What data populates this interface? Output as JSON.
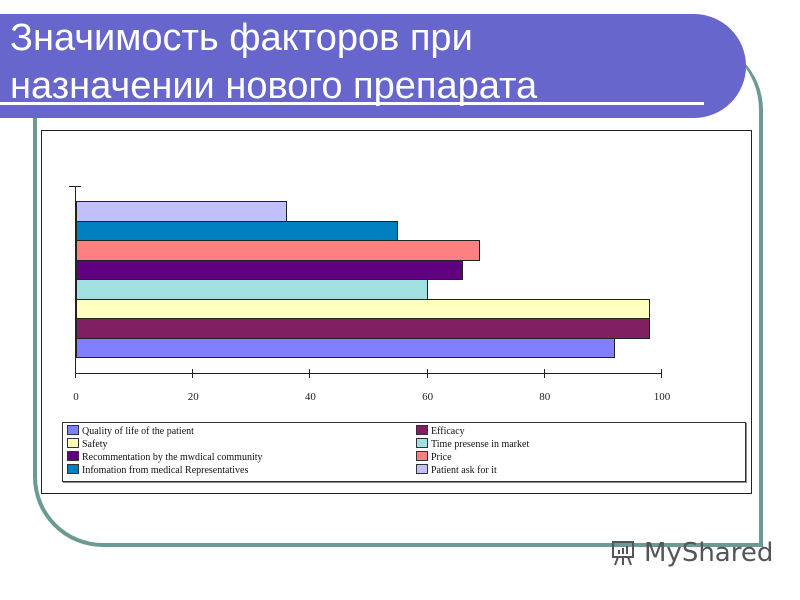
{
  "slide": {
    "title_line1": "Значимость факторов при",
    "title_line2": "назначении нового препарата",
    "watermark": "MyShared",
    "colors": {
      "banner": "#6666cc",
      "frame": "#6a9a93"
    }
  },
  "chart_data": {
    "type": "bar",
    "orientation": "horizontal",
    "title": "Значимость факторов при назначении нового препарата",
    "xlabel": "",
    "ylabel": "",
    "xlim": [
      0,
      100
    ],
    "x_ticks": [
      "0",
      "20",
      "40",
      "60",
      "80",
      "100"
    ],
    "grid": false,
    "legend_position": "bottom",
    "categories": [
      "Quality of life of the patient",
      "Efficacy",
      "Safety",
      "Time presense in market",
      "Recommentation by the mwdical community",
      "Price",
      "Infomation from medical Representatives",
      "Patient ask for it"
    ],
    "values": [
      92,
      98,
      98,
      60,
      66,
      69,
      55,
      36
    ],
    "colors": [
      "#8080ff",
      "#802060",
      "#ffffc0",
      "#a0e0e0",
      "#600080",
      "#ff8080",
      "#0080c0",
      "#c0c0ff"
    ]
  },
  "legend": {
    "items": [
      {
        "label": "Quality of life of the patient",
        "color": "#8080ff"
      },
      {
        "label": "Efficacy",
        "color": "#802060"
      },
      {
        "label": "Safety",
        "color": "#ffffc0"
      },
      {
        "label": "Time presense in market",
        "color": "#a0e0e0"
      },
      {
        "label": "Recommentation by the mwdical community",
        "color": "#600080"
      },
      {
        "label": "Price",
        "color": "#ff8080"
      },
      {
        "label": "Infomation from medical Representatives",
        "color": "#0080c0"
      },
      {
        "label": "Patient ask for it",
        "color": "#c0c0ff"
      }
    ]
  }
}
